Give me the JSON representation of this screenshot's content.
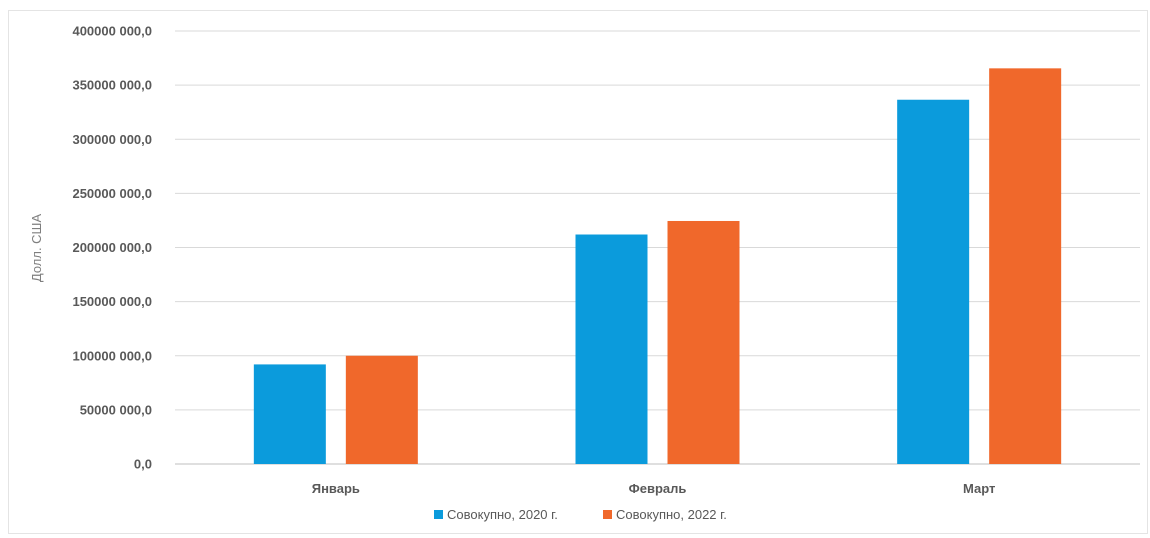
{
  "chart_data": {
    "type": "bar",
    "categories": [
      "Январь",
      "Февраль",
      "Март"
    ],
    "series": [
      {
        "name": "Совокупно, 2020 г.",
        "color": "#0b9bdc",
        "values": [
          92000000,
          212000000,
          336500000
        ]
      },
      {
        "name": "Совокупно, 2022 г.",
        "color": "#f0682b",
        "values": [
          100000000,
          224500000,
          365500000
        ]
      }
    ],
    "ylabel": "Долл. США",
    "ylim": [
      0,
      400000000
    ],
    "yticks": [
      0,
      50000000,
      100000000,
      150000000,
      200000000,
      250000000,
      300000000,
      350000000,
      400000000
    ],
    "ytick_labels": [
      "0,0",
      "50000 000,0",
      "100000 000,0",
      "150000 000,0",
      "200000 000,0",
      "250000 000,0",
      "300000 000,0",
      "350000 000,0",
      "400000 000,0"
    ],
    "grid": true,
    "legend_position": "bottom"
  }
}
